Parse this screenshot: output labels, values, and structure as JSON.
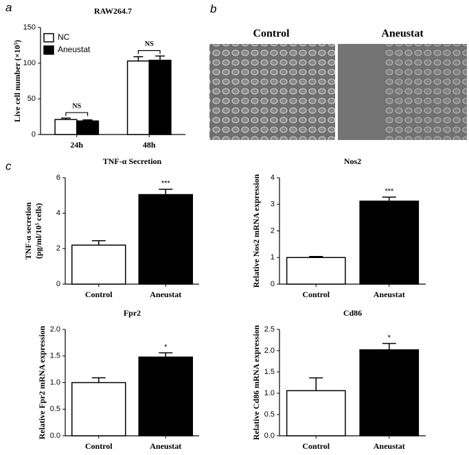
{
  "panel_labels": [
    "a",
    "b",
    "c"
  ],
  "images": {
    "labels": [
      "Control",
      "Aneustat"
    ]
  },
  "chart_data": [
    {
      "type": "grouped_bar",
      "title": "RAW264.7",
      "ylabel": "Live cell number (×10⁵)",
      "categories": [
        "24h",
        "48h"
      ],
      "series": [
        {
          "name": "NC",
          "color": "#ffffff",
          "values": [
            21,
            103
          ],
          "errors": [
            2,
            6
          ]
        },
        {
          "name": "Aneustat",
          "color": "#000000",
          "values": [
            19,
            104
          ],
          "errors": [
            1.5,
            6
          ]
        }
      ],
      "group_annotations": [
        "NS",
        "NS"
      ],
      "ylim": [
        0,
        150
      ],
      "yticks": [
        0,
        50,
        100,
        150
      ],
      "legend": "upper-left"
    },
    {
      "type": "bar",
      "title": "TNF-α Secretion",
      "ylabel": [
        "TNF-α secretion",
        "(pg/ml/10⁵ cells)"
      ],
      "categories": [
        "Control",
        "Aneustat"
      ],
      "values": [
        2.2,
        5.05
      ],
      "errors": [
        0.25,
        0.3
      ],
      "colors": [
        "#ffffff",
        "#000000"
      ],
      "significance": [
        null,
        "***"
      ],
      "ylim": [
        0,
        6
      ],
      "yticks": [
        0,
        2,
        4,
        6
      ]
    },
    {
      "type": "bar",
      "title": "Nos2",
      "ylabel": "Relative Nos2 mRNA expression",
      "categories": [
        "Control",
        "Aneustat"
      ],
      "values": [
        1.0,
        3.12
      ],
      "errors": [
        0.04,
        0.15
      ],
      "colors": [
        "#ffffff",
        "#000000"
      ],
      "significance": [
        null,
        "***"
      ],
      "ylim": [
        0,
        4
      ],
      "yticks": [
        0,
        1,
        2,
        3,
        4
      ]
    },
    {
      "type": "bar",
      "title": "Fpr2",
      "ylabel": "Relative Fpr2 mRNA expression",
      "categories": [
        "Control",
        "Aneustat"
      ],
      "values": [
        1.0,
        1.48
      ],
      "errors": [
        0.09,
        0.08
      ],
      "colors": [
        "#ffffff",
        "#000000"
      ],
      "significance": [
        null,
        "*"
      ],
      "ylim": [
        0,
        2
      ],
      "yticks": [
        {
          "value": 0,
          "label": "0.0"
        },
        0.5,
        {
          "value": 1,
          "label": "1.0"
        },
        1.5,
        {
          "value": 2,
          "label": "2.0"
        }
      ]
    },
    {
      "type": "bar",
      "title": "Cd86",
      "ylabel": "Relative Cd86 mRNA expression",
      "categories": [
        "Control",
        "Aneustat"
      ],
      "values": [
        1.06,
        2.02
      ],
      "errors": [
        0.3,
        0.15
      ],
      "colors": [
        "#ffffff",
        "#000000"
      ],
      "significance": [
        null,
        "*"
      ],
      "ylim": [
        0,
        2.5
      ],
      "yticks": [
        {
          "value": 0,
          "label": "0.0"
        },
        0.5,
        {
          "value": 1,
          "label": "1.0"
        },
        1.5,
        {
          "value": 2,
          "label": "2.0"
        },
        2.5
      ]
    }
  ]
}
